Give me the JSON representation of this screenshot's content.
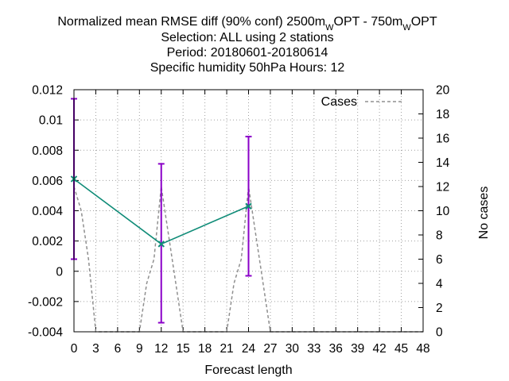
{
  "chart_data": {
    "type": "line",
    "title_lines": [
      {
        "parts": [
          "Normalized mean RMSE diff (90% conf) 2500m",
          "W",
          "OPT - 750m",
          "W",
          "OPT"
        ]
      },
      {
        "text": "Selection: ALL using     2 stations"
      },
      {
        "text": "Period: 20180601-20180614"
      },
      {
        "text": "Specific humidity 50hPa   Hours:  12"
      }
    ],
    "xlabel": "Forecast length",
    "ylabel": "",
    "y2label": "No cases",
    "xlim": [
      0,
      48
    ],
    "ylim": [
      -0.004,
      0.012
    ],
    "y2lim": [
      0,
      20
    ],
    "x_ticks": [
      "0",
      "3",
      "6",
      "9",
      "12",
      "15",
      "18",
      "21",
      "24",
      "27",
      "30",
      "33",
      "36",
      "39",
      "42",
      "45",
      "48"
    ],
    "y_ticks": [
      "-0.004",
      "-0.002",
      "0",
      "0.002",
      "0.004",
      "0.006",
      "0.008",
      "0.01",
      "0.012"
    ],
    "y2_ticks": [
      "0",
      "2",
      "4",
      "6",
      "8",
      "10",
      "12",
      "14",
      "16",
      "18",
      "20"
    ],
    "grid": true,
    "legend": {
      "position": "top-right",
      "entries": [
        "Cases"
      ]
    },
    "series": [
      {
        "name": "",
        "axis": "y",
        "color": "#108c78",
        "marker_color": "#108c78",
        "x": [
          0,
          12,
          24
        ],
        "y": [
          0.0061,
          0.0018,
          0.0043
        ],
        "err_low": [
          0.0008,
          -0.0034,
          -0.0003
        ],
        "err_high": [
          0.0114,
          0.0071,
          0.0089
        ],
        "err_color": "#8a00c8"
      },
      {
        "name": "Cases",
        "axis": "y2",
        "color": "#909090",
        "dashed": true,
        "x": [
          0,
          1,
          2,
          3,
          4,
          5,
          6,
          7,
          8,
          9,
          10,
          11,
          12,
          13,
          14,
          15,
          16,
          17,
          18,
          19,
          20,
          21,
          22,
          23,
          24,
          25,
          26,
          27,
          28,
          29,
          30,
          31,
          32,
          33,
          34,
          35,
          36,
          37,
          38,
          39,
          40,
          41,
          42,
          43,
          44,
          45,
          46,
          47,
          48
        ],
        "y": [
          12,
          10,
          6,
          0,
          0,
          0,
          0,
          0,
          0,
          0,
          4,
          6,
          12,
          8,
          4,
          0,
          0,
          0,
          0,
          0,
          0,
          0,
          4,
          6,
          12,
          8,
          4,
          0,
          0,
          0,
          0,
          0,
          0,
          0,
          0,
          0,
          0,
          0,
          0,
          0,
          0,
          0,
          0,
          0,
          0,
          0,
          0,
          0,
          0
        ]
      }
    ]
  }
}
